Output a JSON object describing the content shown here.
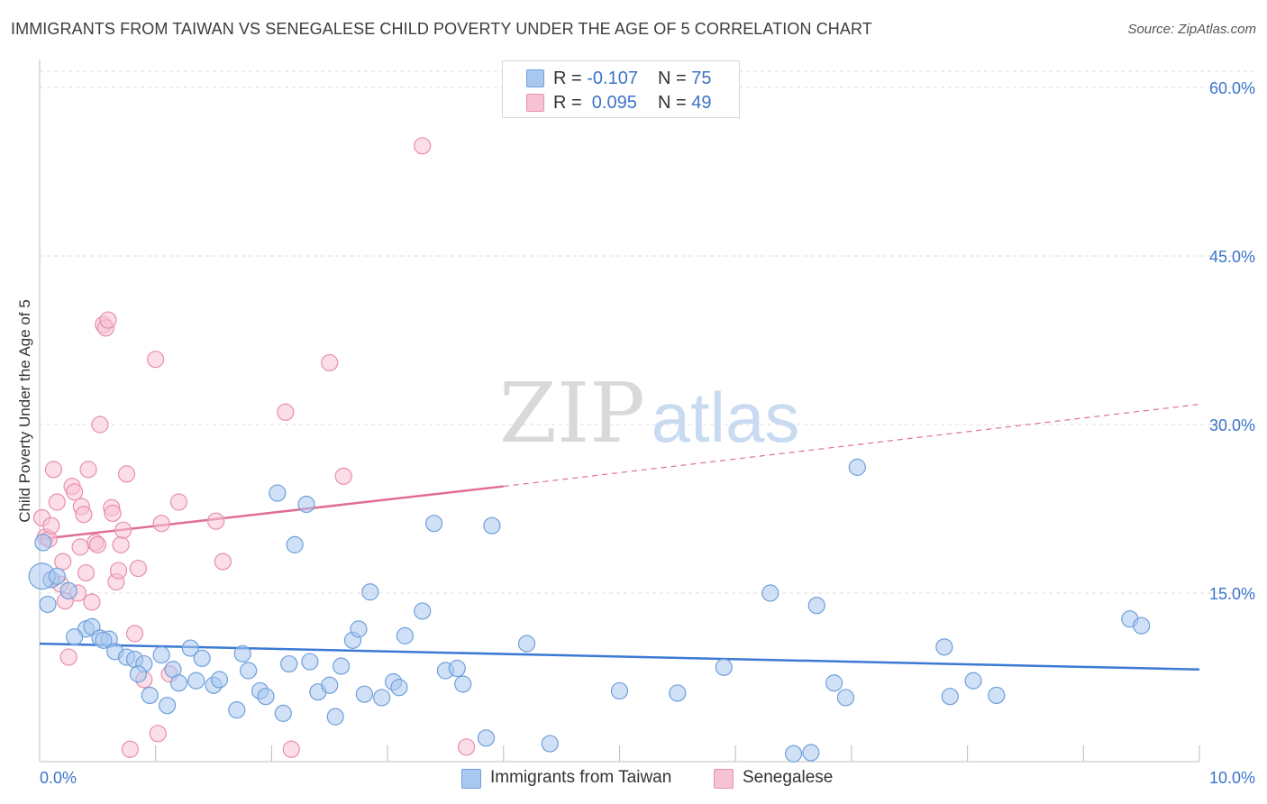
{
  "title": "IMMIGRANTS FROM TAIWAN VS SENEGALESE CHILD POVERTY UNDER THE AGE OF 5 CORRELATION CHART",
  "source": "Source: ZipAtlas.com",
  "watermark": {
    "zip": "ZIP",
    "atlas": "atlas"
  },
  "legend_top": {
    "rows": [
      {
        "r_label": "R = ",
        "r_value": "-0.107",
        "n_label": "N = ",
        "n_value": "75",
        "color": "#a9c8f0",
        "border": "#6f9fdb"
      },
      {
        "r_label": "R = ",
        "r_value": " 0.095",
        "n_label": "N = ",
        "n_value": "49",
        "color": "#f7c3d3",
        "border": "#e88fac"
      }
    ]
  },
  "chart_data": {
    "type": "scatter",
    "xlabel": "",
    "ylabel": "Child Poverty Under the Age of 5",
    "xlim": [
      0,
      10
    ],
    "ylim": [
      0,
      60
    ],
    "x_tick_labels": [
      {
        "value": 0,
        "label": "0.0%"
      },
      {
        "value": 10,
        "label": "10.0%"
      }
    ],
    "y_tick_labels": [
      {
        "value": 15,
        "label": "15.0%"
      },
      {
        "value": 30,
        "label": "30.0%"
      },
      {
        "value": 45,
        "label": "45.0%"
      },
      {
        "value": 60,
        "label": "60.0%"
      }
    ],
    "grid": true,
    "legend_position": "bottom",
    "series": [
      {
        "name": "Immigrants from Taiwan",
        "color": "#a9c8f0",
        "stroke": "#6f9fdb",
        "line_color": "#3b79d4",
        "trend": {
          "x0": 0,
          "y0": 10.5,
          "x1": 10,
          "y1": 8.2
        },
        "points": [
          [
            0.03,
            19.5,
            1
          ],
          [
            0.07,
            14.0,
            1
          ],
          [
            0.1,
            16.2,
            1
          ],
          [
            0.02,
            16.5,
            1.6
          ],
          [
            0.15,
            16.5,
            1
          ],
          [
            0.4,
            11.8,
            1
          ],
          [
            0.3,
            11.1,
            1
          ],
          [
            0.45,
            12.0,
            1
          ],
          [
            0.52,
            11.0,
            1
          ],
          [
            0.6,
            10.9,
            1
          ],
          [
            0.55,
            10.8,
            1
          ],
          [
            0.65,
            9.8,
            1
          ],
          [
            0.75,
            9.3,
            1
          ],
          [
            0.82,
            9.1,
            1
          ],
          [
            0.9,
            8.7,
            1
          ],
          [
            1.05,
            9.5,
            1
          ],
          [
            1.15,
            8.2,
            1
          ],
          [
            1.3,
            10.1,
            1
          ],
          [
            1.4,
            9.2,
            1
          ],
          [
            1.2,
            7.0,
            1
          ],
          [
            1.35,
            7.2,
            1
          ],
          [
            1.5,
            6.8,
            1
          ],
          [
            1.55,
            7.3,
            1
          ],
          [
            0.85,
            7.8,
            1
          ],
          [
            0.95,
            5.9,
            1
          ],
          [
            1.1,
            5.0,
            1
          ],
          [
            1.7,
            4.6,
            1
          ],
          [
            1.75,
            9.6,
            1
          ],
          [
            1.8,
            8.1,
            1
          ],
          [
            1.9,
            6.3,
            1
          ],
          [
            1.95,
            5.8,
            1
          ],
          [
            2.1,
            4.3,
            1
          ],
          [
            2.15,
            8.7,
            1
          ],
          [
            2.2,
            19.3,
            1
          ],
          [
            2.05,
            23.9,
            1
          ],
          [
            2.3,
            22.9,
            1
          ],
          [
            2.33,
            8.9,
            1
          ],
          [
            2.4,
            6.2,
            1
          ],
          [
            2.5,
            6.8,
            1
          ],
          [
            2.55,
            4.0,
            1
          ],
          [
            2.6,
            8.5,
            1
          ],
          [
            2.7,
            10.8,
            1
          ],
          [
            2.75,
            11.8,
            1
          ],
          [
            2.8,
            6.0,
            1
          ],
          [
            2.85,
            15.1,
            1
          ],
          [
            2.95,
            5.7,
            1
          ],
          [
            3.05,
            7.1,
            1
          ],
          [
            3.1,
            6.6,
            1
          ],
          [
            3.15,
            11.2,
            1
          ],
          [
            3.3,
            13.4,
            1
          ],
          [
            3.4,
            21.2,
            1
          ],
          [
            3.5,
            8.1,
            1
          ],
          [
            3.6,
            8.3,
            1
          ],
          [
            3.65,
            6.9,
            1
          ],
          [
            3.85,
            2.1,
            1
          ],
          [
            3.9,
            21.0,
            1
          ],
          [
            4.2,
            10.5,
            1
          ],
          [
            4.4,
            1.6,
            1
          ],
          [
            5.0,
            6.3,
            1
          ],
          [
            5.5,
            6.1,
            1
          ],
          [
            5.9,
            8.4,
            1
          ],
          [
            6.3,
            15.0,
            1
          ],
          [
            6.5,
            0.7,
            1
          ],
          [
            6.65,
            0.8,
            1
          ],
          [
            6.7,
            13.9,
            1
          ],
          [
            6.85,
            7.0,
            1
          ],
          [
            6.95,
            5.7,
            1
          ],
          [
            7.05,
            26.2,
            1
          ],
          [
            7.8,
            10.2,
            1
          ],
          [
            7.85,
            5.8,
            1
          ],
          [
            8.05,
            7.2,
            1
          ],
          [
            8.25,
            5.9,
            1
          ],
          [
            9.4,
            12.7,
            1
          ],
          [
            9.5,
            12.1,
            1
          ],
          [
            0.25,
            15.2,
            1
          ]
        ]
      },
      {
        "name": "Senegalese",
        "color": "#f7c3d3",
        "stroke": "#e88fac",
        "line_color": "#e06d95",
        "trend": {
          "x0": 0,
          "y0": 19.8,
          "x1": 4,
          "y1": 24.5,
          "dash_x1": 10,
          "dash_y1": 31.8
        },
        "points": [
          [
            0.02,
            21.7,
            1
          ],
          [
            0.05,
            20.0,
            1
          ],
          [
            0.08,
            19.8,
            1
          ],
          [
            0.12,
            26.0,
            1
          ],
          [
            0.15,
            23.1,
            1
          ],
          [
            0.18,
            15.8,
            1
          ],
          [
            0.2,
            17.8,
            1
          ],
          [
            0.22,
            14.3,
            1
          ],
          [
            0.25,
            9.3,
            1
          ],
          [
            0.28,
            24.5,
            1
          ],
          [
            0.3,
            24.0,
            1
          ],
          [
            0.33,
            15.0,
            1
          ],
          [
            0.36,
            22.7,
            1
          ],
          [
            0.38,
            22.0,
            1
          ],
          [
            0.4,
            16.8,
            1
          ],
          [
            0.42,
            26.0,
            1
          ],
          [
            0.45,
            14.2,
            1
          ],
          [
            0.48,
            19.5,
            1
          ],
          [
            0.5,
            19.3,
            1
          ],
          [
            0.52,
            30.0,
            1
          ],
          [
            0.55,
            38.9,
            1
          ],
          [
            0.57,
            38.6,
            1
          ],
          [
            0.59,
            39.3,
            1
          ],
          [
            0.62,
            22.6,
            1
          ],
          [
            0.63,
            22.1,
            1
          ],
          [
            0.66,
            16.0,
            1
          ],
          [
            0.68,
            17.0,
            1
          ],
          [
            0.7,
            19.3,
            1
          ],
          [
            0.72,
            20.6,
            1
          ],
          [
            0.75,
            25.6,
            1
          ],
          [
            0.78,
            1.1,
            1
          ],
          [
            0.82,
            11.4,
            1
          ],
          [
            0.85,
            17.2,
            1
          ],
          [
            0.9,
            7.3,
            1
          ],
          [
            1.0,
            35.8,
            1
          ],
          [
            1.02,
            2.5,
            1
          ],
          [
            1.05,
            21.2,
            1
          ],
          [
            1.12,
            7.8,
            1
          ],
          [
            1.2,
            23.1,
            1
          ],
          [
            1.52,
            21.4,
            1
          ],
          [
            1.58,
            17.8,
            1
          ],
          [
            2.12,
            31.1,
            1
          ],
          [
            2.17,
            1.1,
            1
          ],
          [
            2.5,
            35.5,
            1
          ],
          [
            2.62,
            25.4,
            1
          ],
          [
            3.3,
            54.8,
            1
          ],
          [
            3.68,
            1.3,
            1
          ],
          [
            0.1,
            21.0,
            1
          ],
          [
            0.35,
            19.1,
            1
          ]
        ]
      }
    ]
  }
}
